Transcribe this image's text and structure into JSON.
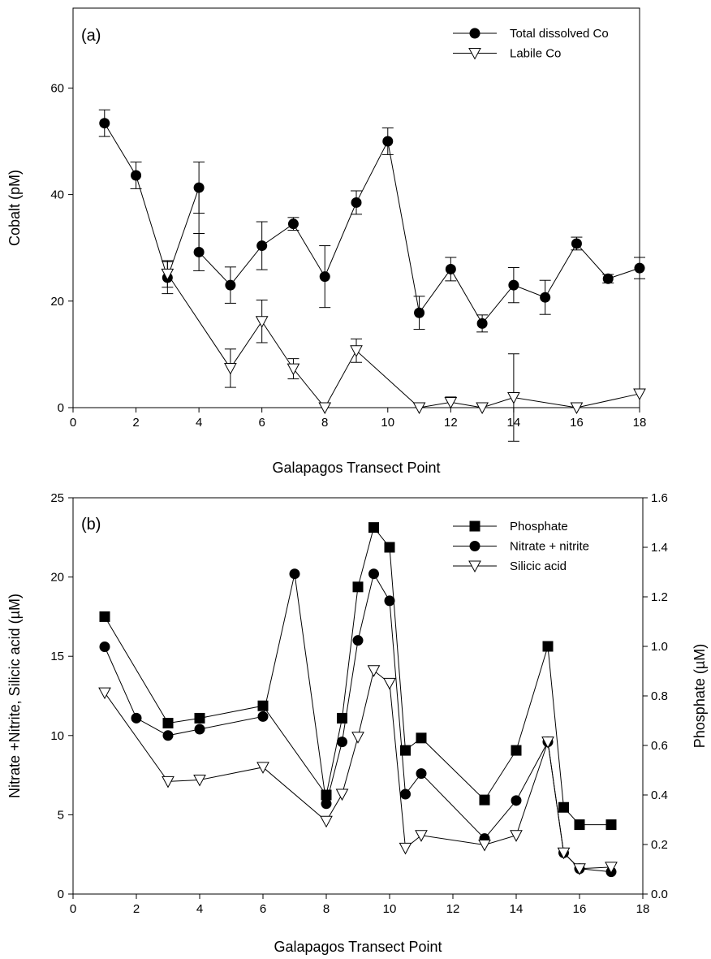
{
  "chart_data": [
    {
      "type": "line",
      "panel_label": "(a)",
      "xlabel": "Galapagos Transect Point",
      "ylabel": "Cobalt (pM)",
      "xlim": [
        0,
        18
      ],
      "ylim": [
        0,
        75
      ],
      "xticks": [
        0,
        2,
        4,
        6,
        8,
        10,
        12,
        14,
        16,
        18
      ],
      "yticks": [
        0,
        20,
        40,
        60
      ],
      "grid": false,
      "legend_position": "top-right",
      "series": [
        {
          "name": "Total dissolved Co",
          "marker": "filled-circle",
          "x": [
            1,
            2,
            3,
            4,
            4,
            5,
            6,
            7,
            8,
            9,
            10,
            11,
            12,
            13,
            14,
            15,
            16,
            17,
            18
          ],
          "y": [
            53.4,
            43.6,
            24.4,
            41.3,
            29.2,
            23.0,
            30.4,
            34.5,
            24.6,
            38.5,
            50.0,
            17.8,
            26.0,
            15.8,
            23.0,
            20.7,
            30.8,
            24.2,
            26.2
          ],
          "error": [
            2.5,
            2.5,
            3.0,
            4.8,
            3.5,
            3.4,
            4.5,
            1.2,
            5.8,
            2.2,
            2.5,
            3.1,
            2.2,
            1.6,
            3.3,
            3.2,
            1.2,
            0.8,
            2.0
          ]
        },
        {
          "name": "Labile Co",
          "marker": "open-triangle-down",
          "x": [
            3,
            5,
            6,
            7,
            8,
            9,
            11,
            12,
            13,
            14,
            16,
            18
          ],
          "y": [
            25.1,
            7.4,
            16.2,
            7.3,
            0,
            10.7,
            0,
            1.0,
            0,
            1.9,
            0,
            2.6
          ],
          "error": [
            2.5,
            3.6,
            4.0,
            1.9,
            0,
            2.2,
            0,
            1.0,
            0,
            8.2,
            0,
            0
          ]
        }
      ]
    },
    {
      "type": "line",
      "panel_label": "(b)",
      "xlabel": "Galapagos Transect Point",
      "ylabel": "Nitrate +Nitrite, Silicic acid (µM)",
      "y2label": "Phosphate (µM)",
      "xlim": [
        0,
        18
      ],
      "ylim": [
        0,
        25
      ],
      "y2lim": [
        0,
        1.6
      ],
      "xticks": [
        0,
        2,
        4,
        6,
        8,
        10,
        12,
        14,
        16,
        18
      ],
      "yticks": [
        0,
        5,
        10,
        15,
        20,
        25
      ],
      "y2ticks": [
        "0.0",
        "0.2",
        "0.4",
        "0.6",
        "0.8",
        "1.0",
        "1.2",
        "1.4",
        "1.6"
      ],
      "grid": false,
      "legend_position": "top-right",
      "series": [
        {
          "name": "Phosphate",
          "marker": "filled-square",
          "axis": "right",
          "x": [
            1,
            3,
            4,
            6,
            8,
            8.5,
            9,
            9.5,
            10,
            10.5,
            11,
            13,
            14,
            15,
            15.5,
            16,
            17
          ],
          "y": [
            1.12,
            0.69,
            0.71,
            0.76,
            0.4,
            0.71,
            1.24,
            1.48,
            1.4,
            0.58,
            0.63,
            0.38,
            0.58,
            1.0,
            0.35,
            0.28,
            0.28
          ]
        },
        {
          "name": "Nitrate + nitrite",
          "marker": "filled-circle",
          "axis": "left",
          "x": [
            1,
            2,
            3,
            4,
            6,
            7,
            8,
            8.5,
            9,
            9.5,
            10,
            10.5,
            11,
            13,
            14,
            15,
            15.5,
            16,
            17
          ],
          "y": [
            15.6,
            11.1,
            10.0,
            10.4,
            11.2,
            20.2,
            5.7,
            9.6,
            16.0,
            20.2,
            18.5,
            6.3,
            7.6,
            3.5,
            5.9,
            9.6,
            2.6,
            1.6,
            1.4
          ]
        },
        {
          "name": "Silicic acid",
          "marker": "open-triangle-down",
          "axis": "left",
          "x": [
            1,
            3,
            4,
            6,
            8,
            8.5,
            9,
            9.5,
            10,
            10.5,
            11,
            13,
            14,
            15,
            15.5,
            16,
            17
          ],
          "y": [
            12.7,
            7.1,
            7.2,
            8.0,
            4.6,
            6.3,
            9.9,
            14.1,
            13.3,
            2.9,
            3.7,
            3.1,
            3.7,
            9.6,
            2.6,
            1.6,
            1.7
          ]
        }
      ]
    }
  ]
}
